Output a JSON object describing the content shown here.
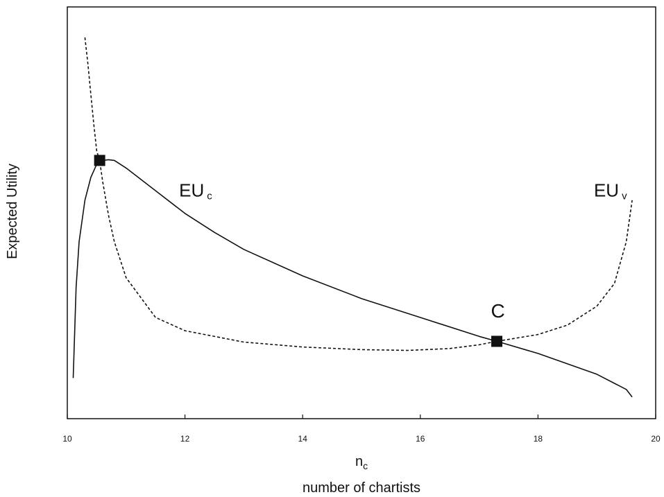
{
  "chart_data": {
    "type": "line",
    "title": "",
    "xlabel": "n",
    "xlabel_subscript": "c",
    "xlabel_line2": "number of chartists",
    "ylabel": "Expected Utility",
    "xlim": [
      10,
      20
    ],
    "ylim": [
      0,
      1
    ],
    "x_ticks": [
      "10",
      "12",
      "14",
      "16",
      "18",
      "20"
    ],
    "y_ticks_labeled": false,
    "grid": false,
    "legend": "none",
    "series": [
      {
        "name": "EU",
        "name_subscript": "c",
        "style": "solid",
        "color": "#111111",
        "x": [
          10.1,
          10.15,
          10.2,
          10.3,
          10.4,
          10.5,
          10.6,
          10.7,
          10.8,
          11.0,
          11.5,
          12.0,
          12.5,
          13.0,
          14.0,
          15.0,
          16.0,
          17.0,
          17.3,
          18.0,
          19.0,
          19.5,
          19.6
        ],
        "y": [
          0.1,
          0.34,
          0.46,
          0.57,
          0.63,
          0.665,
          0.675,
          0.677,
          0.675,
          0.655,
          0.595,
          0.535,
          0.485,
          0.44,
          0.37,
          0.31,
          0.26,
          0.21,
          0.197,
          0.165,
          0.11,
          0.07,
          0.05
        ]
      },
      {
        "name": "EU",
        "name_subscript": "v",
        "style": "dashed",
        "color": "#111111",
        "x": [
          10.3,
          10.35,
          10.4,
          10.45,
          10.5,
          10.55,
          10.6,
          10.7,
          10.8,
          11.0,
          11.5,
          12.0,
          13.0,
          14.0,
          15.0,
          15.8,
          16.5,
          17.0,
          17.3,
          18.0,
          18.5,
          19.0,
          19.3,
          19.5,
          19.6
        ],
        "y": [
          1.0,
          0.93,
          0.85,
          0.77,
          0.7,
          0.675,
          0.62,
          0.53,
          0.46,
          0.365,
          0.26,
          0.225,
          0.195,
          0.182,
          0.175,
          0.173,
          0.178,
          0.188,
          0.197,
          0.215,
          0.24,
          0.29,
          0.35,
          0.46,
          0.57
        ]
      }
    ],
    "annotations": [
      {
        "text": "EU",
        "subscript": "c",
        "x": 11.9,
        "y": 0.58
      },
      {
        "text": "EU",
        "subscript": "v",
        "x": 18.95,
        "y": 0.58
      },
      {
        "text": "C",
        "x": 17.2,
        "y": 0.26
      }
    ],
    "markers": [
      {
        "x": 10.55,
        "y": 0.675
      },
      {
        "x": 17.3,
        "y": 0.197
      }
    ]
  }
}
